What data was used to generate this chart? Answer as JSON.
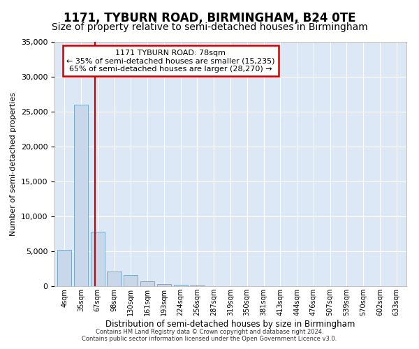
{
  "title": "1171, TYBURN ROAD, BIRMINGHAM, B24 0TE",
  "subtitle": "Size of property relative to semi-detached houses in Birmingham",
  "xlabel": "Distribution of semi-detached houses by size in Birmingham",
  "ylabel": "Number of semi-detached properties",
  "footer_line1": "Contains HM Land Registry data © Crown copyright and database right 2024.",
  "footer_line2": "Contains public sector information licensed under the Open Government Licence v3.0.",
  "annotation_title": "1171 TYBURN ROAD: 78sqm",
  "annotation_line1": "← 35% of semi-detached houses are smaller (15,235)",
  "annotation_line2": "65% of semi-detached houses are larger (28,270) →",
  "bar_color": "#c8d8ea",
  "bar_edge_color": "#7aaac8",
  "vline_color": "#cc0000",
  "annotation_box_edge": "#cc0000",
  "background_color": "#ffffff",
  "plot_bg_color": "#dce8f5",
  "categories": [
    "4sqm",
    "35sqm",
    "67sqm",
    "98sqm",
    "130sqm",
    "161sqm",
    "193sqm",
    "224sqm",
    "256sqm",
    "287sqm",
    "319sqm",
    "350sqm",
    "381sqm",
    "413sqm",
    "444sqm",
    "476sqm",
    "507sqm",
    "539sqm",
    "570sqm",
    "602sqm",
    "633sqm"
  ],
  "values": [
    5200,
    26000,
    7800,
    2100,
    1600,
    700,
    350,
    180,
    80,
    30,
    0,
    0,
    0,
    0,
    0,
    0,
    0,
    0,
    0,
    0,
    0
  ],
  "ylim": [
    0,
    35000
  ],
  "yticks": [
    0,
    5000,
    10000,
    15000,
    20000,
    25000,
    30000,
    35000
  ],
  "grid_color": "#ffffff",
  "vline_x": 1.85,
  "title_fontsize": 12,
  "subtitle_fontsize": 10,
  "annotation_fontsize": 8
}
